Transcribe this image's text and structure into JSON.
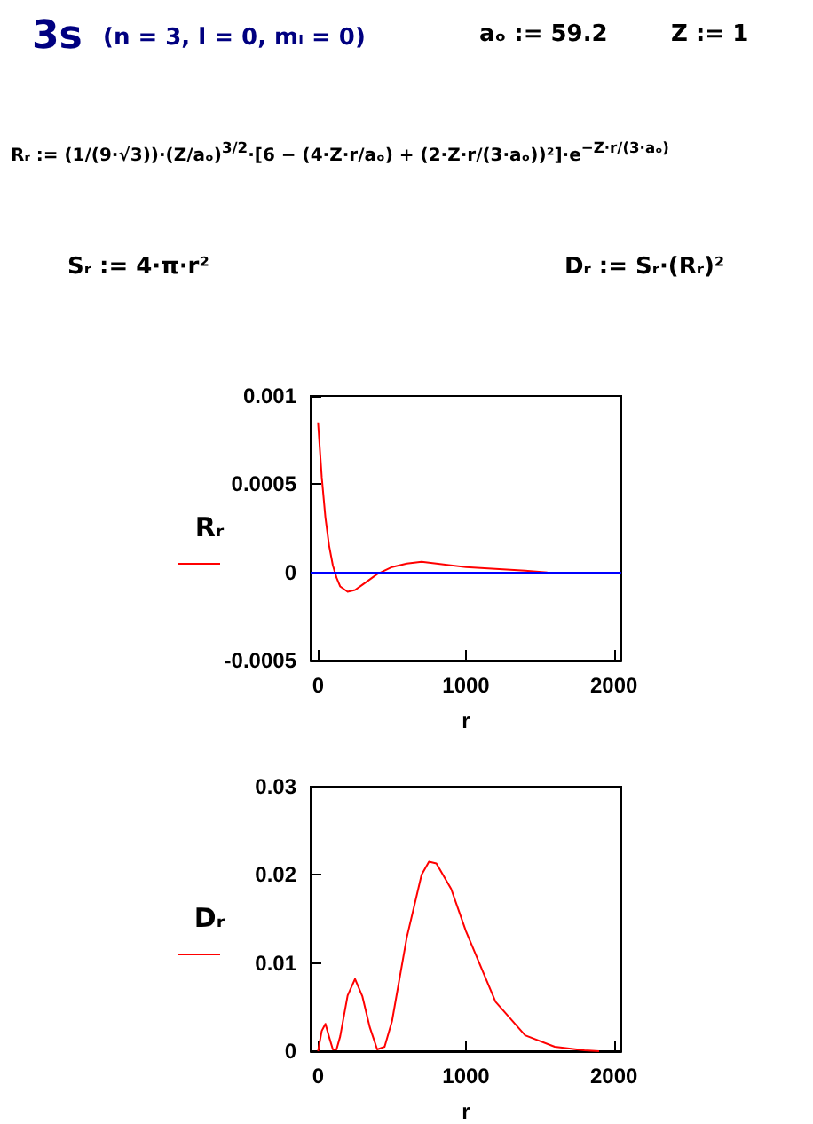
{
  "chart_data": [
    {
      "type": "line",
      "annotations": [
        "3s",
        "(n = 3, l = 0, mₗ = 0)",
        "aₒ := 59.2",
        "Z := 1",
        "Rᵣ := (1/(9·√3))·(Z/aₒ)$^{3/2}$·[6 − (4·Z·r/aₒ) + (2·Z·r/(3·aₒ))²]·e$^{−Z·r/(3·aₒ)}$",
        "Sᵣ := 4·π·r²",
        "Dᵣ := Sᵣ·(Rᵣ)²"
      ],
      "xlabel": "r",
      "ylabel": "Rᵣ",
      "xlim": [
        -50,
        2050
      ],
      "xticks": [
        0,
        1000,
        2000
      ],
      "ylim": [
        -0.0005,
        0.001
      ],
      "yticks": [
        -0.0005,
        0,
        0.0005,
        0.001
      ],
      "grid": false,
      "ref_lines": [
        {
          "axis": "y",
          "value": 0,
          "color": "#0000ff"
        }
      ],
      "series": [
        {
          "color": "#ff0000",
          "x": [
            0,
            25,
            50,
            75,
            100,
            125,
            150,
            200,
            250,
            300,
            350,
            400,
            450,
            500,
            600,
            700,
            800,
            1000,
            1200,
            1400,
            1550
          ],
          "values": [
            0.00085,
            0.00054,
            0.00031,
            0.00015,
            4e-05,
            -3e-05,
            -8e-05,
            -0.00011,
            -0.0001,
            -7e-05,
            -4e-05,
            -1e-05,
            1e-05,
            3e-05,
            5e-05,
            6e-05,
            5e-05,
            3e-05,
            2e-05,
            1e-05,
            0
          ]
        }
      ]
    },
    {
      "type": "line",
      "xlabel": "r",
      "ylabel": "Dᵣ",
      "xlim": [
        -50,
        2050
      ],
      "xticks": [
        0,
        1000,
        2000
      ],
      "ylim": [
        0,
        0.03
      ],
      "yticks": [
        0,
        0.01,
        0.02,
        0.03
      ],
      "grid": false,
      "series": [
        {
          "color": "#ff0000",
          "x": [
            0,
            25,
            50,
            75,
            100,
            125,
            150,
            200,
            250,
            300,
            350,
            400,
            450,
            500,
            600,
            700,
            750,
            800,
            900,
            1000,
            1200,
            1400,
            1600,
            1800,
            1900
          ],
          "values": [
            0,
            0.0023,
            0.0031,
            0.0016,
            0.0002,
            0.0002,
            0.0017,
            0.0063,
            0.0082,
            0.0062,
            0.0027,
            0.0002,
            0.0005,
            0.0034,
            0.0129,
            0.02,
            0.0215,
            0.0213,
            0.0184,
            0.0136,
            0.0056,
            0.0018,
            0.0005,
            0.0001,
            0
          ]
        }
      ]
    }
  ]
}
